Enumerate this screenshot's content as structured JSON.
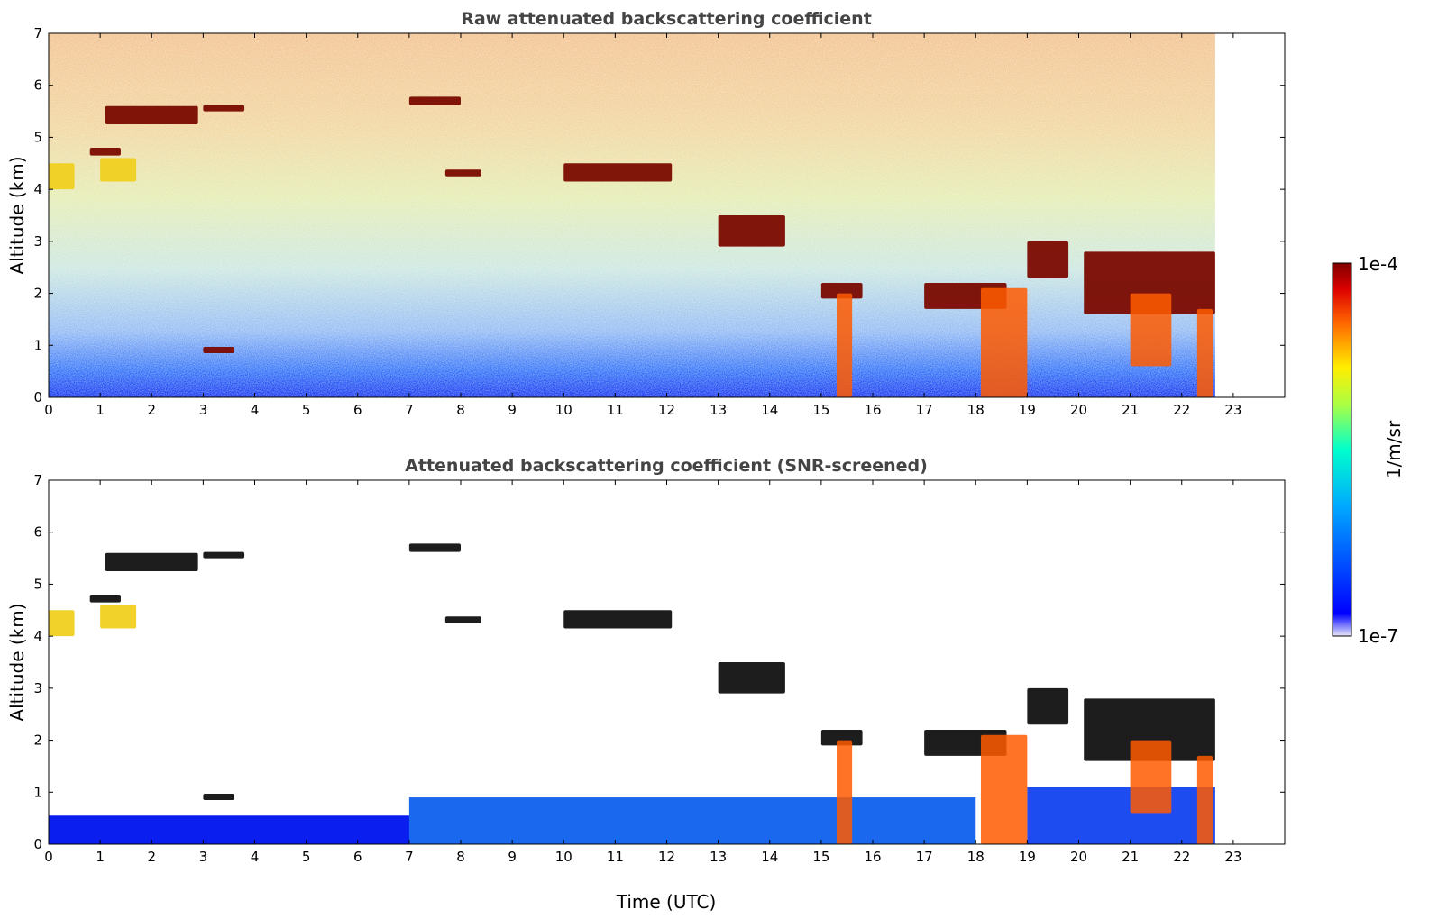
{
  "chart_data": [
    {
      "type": "heatmap",
      "title": "Raw attenuated backscattering coefficient",
      "xlabel": "",
      "ylabel": "Altitude (km)",
      "xlim": [
        0,
        24
      ],
      "ylim": [
        0,
        7
      ],
      "xticks": [
        "0",
        "1",
        "2",
        "3",
        "4",
        "5",
        "6",
        "7",
        "8",
        "9",
        "10",
        "11",
        "12",
        "13",
        "14",
        "15",
        "16",
        "17",
        "18",
        "19",
        "20",
        "21",
        "22",
        "23"
      ],
      "yticks": [
        "0",
        "1",
        "2",
        "3",
        "4",
        "5",
        "6",
        "7"
      ],
      "data_end_time": 22.65,
      "features": [
        {
          "kind": "cloud",
          "x": [
            1.1,
            2.9
          ],
          "y": [
            5.25,
            5.6
          ]
        },
        {
          "kind": "cloud",
          "x": [
            3.0,
            3.8
          ],
          "y": [
            5.5,
            5.62
          ]
        },
        {
          "kind": "cloud",
          "x": [
            7.0,
            8.0
          ],
          "y": [
            5.62,
            5.78
          ]
        },
        {
          "kind": "cloud",
          "x": [
            0.8,
            1.4
          ],
          "y": [
            4.65,
            4.8
          ]
        },
        {
          "kind": "aerosol",
          "x": [
            1.0,
            1.7
          ],
          "y": [
            4.15,
            4.6
          ]
        },
        {
          "kind": "aerosol",
          "x": [
            0.0,
            0.5
          ],
          "y": [
            4.0,
            4.5
          ]
        },
        {
          "kind": "cloud",
          "x": [
            7.7,
            8.4
          ],
          "y": [
            4.25,
            4.38
          ]
        },
        {
          "kind": "cloud",
          "x": [
            10.0,
            12.1
          ],
          "y": [
            4.15,
            4.5
          ]
        },
        {
          "kind": "cloud",
          "x": [
            3.0,
            3.6
          ],
          "y": [
            0.85,
            0.97
          ]
        },
        {
          "kind": "cloud",
          "x": [
            13.0,
            14.3
          ],
          "y": [
            2.9,
            3.5
          ]
        },
        {
          "kind": "cloud",
          "x": [
            15.0,
            15.8
          ],
          "y": [
            1.9,
            2.2
          ]
        },
        {
          "kind": "cloud",
          "x": [
            17.0,
            18.6
          ],
          "y": [
            1.7,
            2.2
          ]
        },
        {
          "kind": "cloud",
          "x": [
            19.0,
            19.8
          ],
          "y": [
            2.3,
            3.0
          ]
        },
        {
          "kind": "cloud",
          "x": [
            20.1,
            22.65
          ],
          "y": [
            1.6,
            2.8
          ]
        },
        {
          "kind": "precip",
          "x": [
            15.3,
            15.6
          ],
          "y": [
            0.0,
            2.0
          ]
        },
        {
          "kind": "precip",
          "x": [
            18.1,
            19.0
          ],
          "y": [
            0.0,
            2.1
          ]
        },
        {
          "kind": "precip",
          "x": [
            22.3,
            22.6
          ],
          "y": [
            0.0,
            1.7
          ]
        },
        {
          "kind": "precip",
          "x": [
            21.0,
            21.8
          ],
          "y": [
            0.6,
            2.0
          ]
        }
      ]
    },
    {
      "type": "heatmap",
      "title": "Attenuated backscattering coefficient (SNR-screened)",
      "xlabel": "Time (UTC)",
      "ylabel": "Altitude (km)",
      "xlim": [
        0,
        24
      ],
      "ylim": [
        0,
        7
      ],
      "xticks": [
        "0",
        "1",
        "2",
        "3",
        "4",
        "5",
        "6",
        "7",
        "8",
        "9",
        "10",
        "11",
        "12",
        "13",
        "14",
        "15",
        "16",
        "17",
        "18",
        "19",
        "20",
        "21",
        "22",
        "23"
      ],
      "yticks": [
        "0",
        "1",
        "2",
        "3",
        "4",
        "5",
        "6",
        "7"
      ],
      "data_end_time": 22.65,
      "features": [
        {
          "kind": "cloud",
          "x": [
            1.1,
            2.9
          ],
          "y": [
            5.25,
            5.6
          ]
        },
        {
          "kind": "cloud",
          "x": [
            3.0,
            3.8
          ],
          "y": [
            5.5,
            5.62
          ]
        },
        {
          "kind": "cloud",
          "x": [
            7.0,
            8.0
          ],
          "y": [
            5.62,
            5.78
          ]
        },
        {
          "kind": "cloud",
          "x": [
            0.8,
            1.4
          ],
          "y": [
            4.65,
            4.8
          ]
        },
        {
          "kind": "aerosol",
          "x": [
            1.0,
            1.7
          ],
          "y": [
            4.15,
            4.6
          ]
        },
        {
          "kind": "aerosol",
          "x": [
            0.0,
            0.5
          ],
          "y": [
            4.0,
            4.5
          ]
        },
        {
          "kind": "cloud",
          "x": [
            7.7,
            8.4
          ],
          "y": [
            4.25,
            4.38
          ]
        },
        {
          "kind": "cloud",
          "x": [
            10.0,
            12.1
          ],
          "y": [
            4.15,
            4.5
          ]
        },
        {
          "kind": "cloud",
          "x": [
            3.0,
            3.6
          ],
          "y": [
            0.85,
            0.97
          ]
        },
        {
          "kind": "cloud",
          "x": [
            13.0,
            14.3
          ],
          "y": [
            2.9,
            3.5
          ]
        },
        {
          "kind": "cloud",
          "x": [
            15.0,
            15.8
          ],
          "y": [
            1.9,
            2.2
          ]
        },
        {
          "kind": "cloud",
          "x": [
            17.0,
            18.6
          ],
          "y": [
            1.7,
            2.2
          ]
        },
        {
          "kind": "cloud",
          "x": [
            19.0,
            19.8
          ],
          "y": [
            2.3,
            3.0
          ]
        },
        {
          "kind": "cloud",
          "x": [
            20.1,
            22.65
          ],
          "y": [
            1.6,
            2.8
          ]
        },
        {
          "kind": "precip",
          "x": [
            15.3,
            15.6
          ],
          "y": [
            0.0,
            2.0
          ]
        },
        {
          "kind": "precip",
          "x": [
            18.1,
            19.0
          ],
          "y": [
            0.0,
            2.1
          ]
        },
        {
          "kind": "precip",
          "x": [
            22.3,
            22.6
          ],
          "y": [
            0.0,
            1.7
          ]
        },
        {
          "kind": "precip",
          "x": [
            21.0,
            21.8
          ],
          "y": [
            0.6,
            2.0
          ]
        }
      ]
    }
  ],
  "colorbar": {
    "label": "1/m/sr",
    "min_label": "1e-7",
    "max_label": "1e-4",
    "colormap": "jet",
    "colors": [
      "#e8e8f8",
      "#0000ff",
      "#00aaff",
      "#00ffcc",
      "#aaff44",
      "#ffee00",
      "#ff6600",
      "#dd0000",
      "#800000"
    ]
  }
}
